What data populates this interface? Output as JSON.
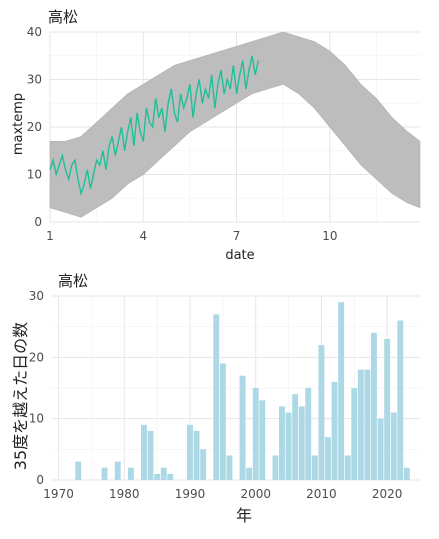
{
  "chart_data": [
    {
      "type": "line",
      "title": "高松",
      "xlabel": "date",
      "ylabel": "maxtemp",
      "xlim": [
        1,
        12.9
      ],
      "ylim": [
        0,
        40
      ],
      "x_ticks": [
        1,
        4,
        7,
        10
      ],
      "y_ticks": [
        0,
        10,
        20,
        30,
        40
      ],
      "grid": true,
      "legend": "none",
      "colors": {
        "history_band": "#bdbdbd",
        "current_year": "#1fbf9a"
      },
      "series": [
        {
          "kind": "band",
          "points": [
            {
              "x": 1.0,
              "low": 3,
              "high": 17
            },
            {
              "x": 1.5,
              "low": 2,
              "high": 17
            },
            {
              "x": 2.0,
              "low": 1,
              "high": 18
            },
            {
              "x": 2.5,
              "low": 3,
              "high": 21
            },
            {
              "x": 3.0,
              "low": 5,
              "high": 24
            },
            {
              "x": 3.5,
              "low": 8,
              "high": 27
            },
            {
              "x": 4.0,
              "low": 10,
              "high": 29
            },
            {
              "x": 4.5,
              "low": 13,
              "high": 31
            },
            {
              "x": 5.0,
              "low": 16,
              "high": 33
            },
            {
              "x": 5.5,
              "low": 19,
              "high": 34
            },
            {
              "x": 6.0,
              "low": 21,
              "high": 35
            },
            {
              "x": 6.5,
              "low": 23,
              "high": 36
            },
            {
              "x": 7.0,
              "low": 25,
              "high": 37
            },
            {
              "x": 7.5,
              "low": 27,
              "high": 38
            },
            {
              "x": 8.0,
              "low": 28,
              "high": 39
            },
            {
              "x": 8.5,
              "low": 29,
              "high": 40
            },
            {
              "x": 9.0,
              "low": 27,
              "high": 39
            },
            {
              "x": 9.5,
              "low": 24,
              "high": 38
            },
            {
              "x": 10.0,
              "low": 20,
              "high": 36
            },
            {
              "x": 10.5,
              "low": 16,
              "high": 33
            },
            {
              "x": 11.0,
              "low": 12,
              "high": 29
            },
            {
              "x": 11.5,
              "low": 9,
              "high": 26
            },
            {
              "x": 12.0,
              "low": 6,
              "high": 22
            },
            {
              "x": 12.5,
              "low": 4,
              "high": 19
            },
            {
              "x": 12.9,
              "low": 3,
              "high": 17
            }
          ]
        },
        {
          "kind": "line",
          "x": [
            1.0,
            1.1,
            1.2,
            1.3,
            1.4,
            1.5,
            1.6,
            1.7,
            1.8,
            1.9,
            2.0,
            2.1,
            2.2,
            2.3,
            2.4,
            2.5,
            2.6,
            2.7,
            2.8,
            2.9,
            3.0,
            3.1,
            3.2,
            3.3,
            3.4,
            3.5,
            3.6,
            3.7,
            3.8,
            3.9,
            4.0,
            4.1,
            4.2,
            4.3,
            4.4,
            4.5,
            4.6,
            4.7,
            4.8,
            4.9,
            5.0,
            5.1,
            5.2,
            5.3,
            5.4,
            5.5,
            5.6,
            5.7,
            5.8,
            5.9,
            6.0,
            6.1,
            6.2,
            6.3,
            6.4,
            6.5,
            6.6,
            6.7,
            6.8,
            6.9,
            7.0,
            7.1,
            7.2,
            7.3,
            7.4,
            7.5,
            7.6,
            7.7
          ],
          "y": [
            11,
            13,
            10,
            12,
            14,
            11,
            9,
            12,
            13,
            9,
            6,
            8,
            11,
            7,
            10,
            13,
            12,
            15,
            11,
            16,
            18,
            14,
            17,
            20,
            15,
            19,
            22,
            16,
            23,
            19,
            17,
            24,
            21,
            20,
            26,
            22,
            24,
            19,
            25,
            28,
            23,
            21,
            27,
            24,
            26,
            29,
            22,
            27,
            30,
            25,
            28,
            26,
            31,
            24,
            29,
            32,
            27,
            30,
            28,
            33,
            27,
            31,
            34,
            28,
            32,
            35,
            31,
            34
          ]
        }
      ]
    },
    {
      "type": "bar",
      "title": "高松",
      "xlabel": "年",
      "ylabel": "35度を越えた日の数",
      "xlim": [
        1969,
        2025
      ],
      "ylim": [
        0,
        30
      ],
      "x_ticks": [
        1970,
        1980,
        1990,
        2000,
        2010,
        2020
      ],
      "y_ticks": [
        0,
        10,
        20,
        30
      ],
      "grid": true,
      "bar_color": "#add8e6",
      "x": [
        1973,
        1977,
        1979,
        1981,
        1983,
        1984,
        1985,
        1986,
        1987,
        1990,
        1991,
        1992,
        1994,
        1995,
        1996,
        1998,
        1999,
        2000,
        2001,
        2003,
        2004,
        2005,
        2006,
        2007,
        2008,
        2009,
        2010,
        2011,
        2012,
        2013,
        2014,
        2015,
        2016,
        2017,
        2018,
        2019,
        2020,
        2021,
        2022,
        2023
      ],
      "values": [
        3,
        2,
        3,
        2,
        9,
        8,
        1,
        2,
        1,
        9,
        8,
        5,
        27,
        19,
        4,
        17,
        2,
        15,
        13,
        4,
        12,
        11,
        14,
        12,
        15,
        4,
        22,
        7,
        16,
        29,
        4,
        15,
        18,
        18,
        24,
        10,
        23,
        11,
        26,
        2
      ]
    }
  ]
}
